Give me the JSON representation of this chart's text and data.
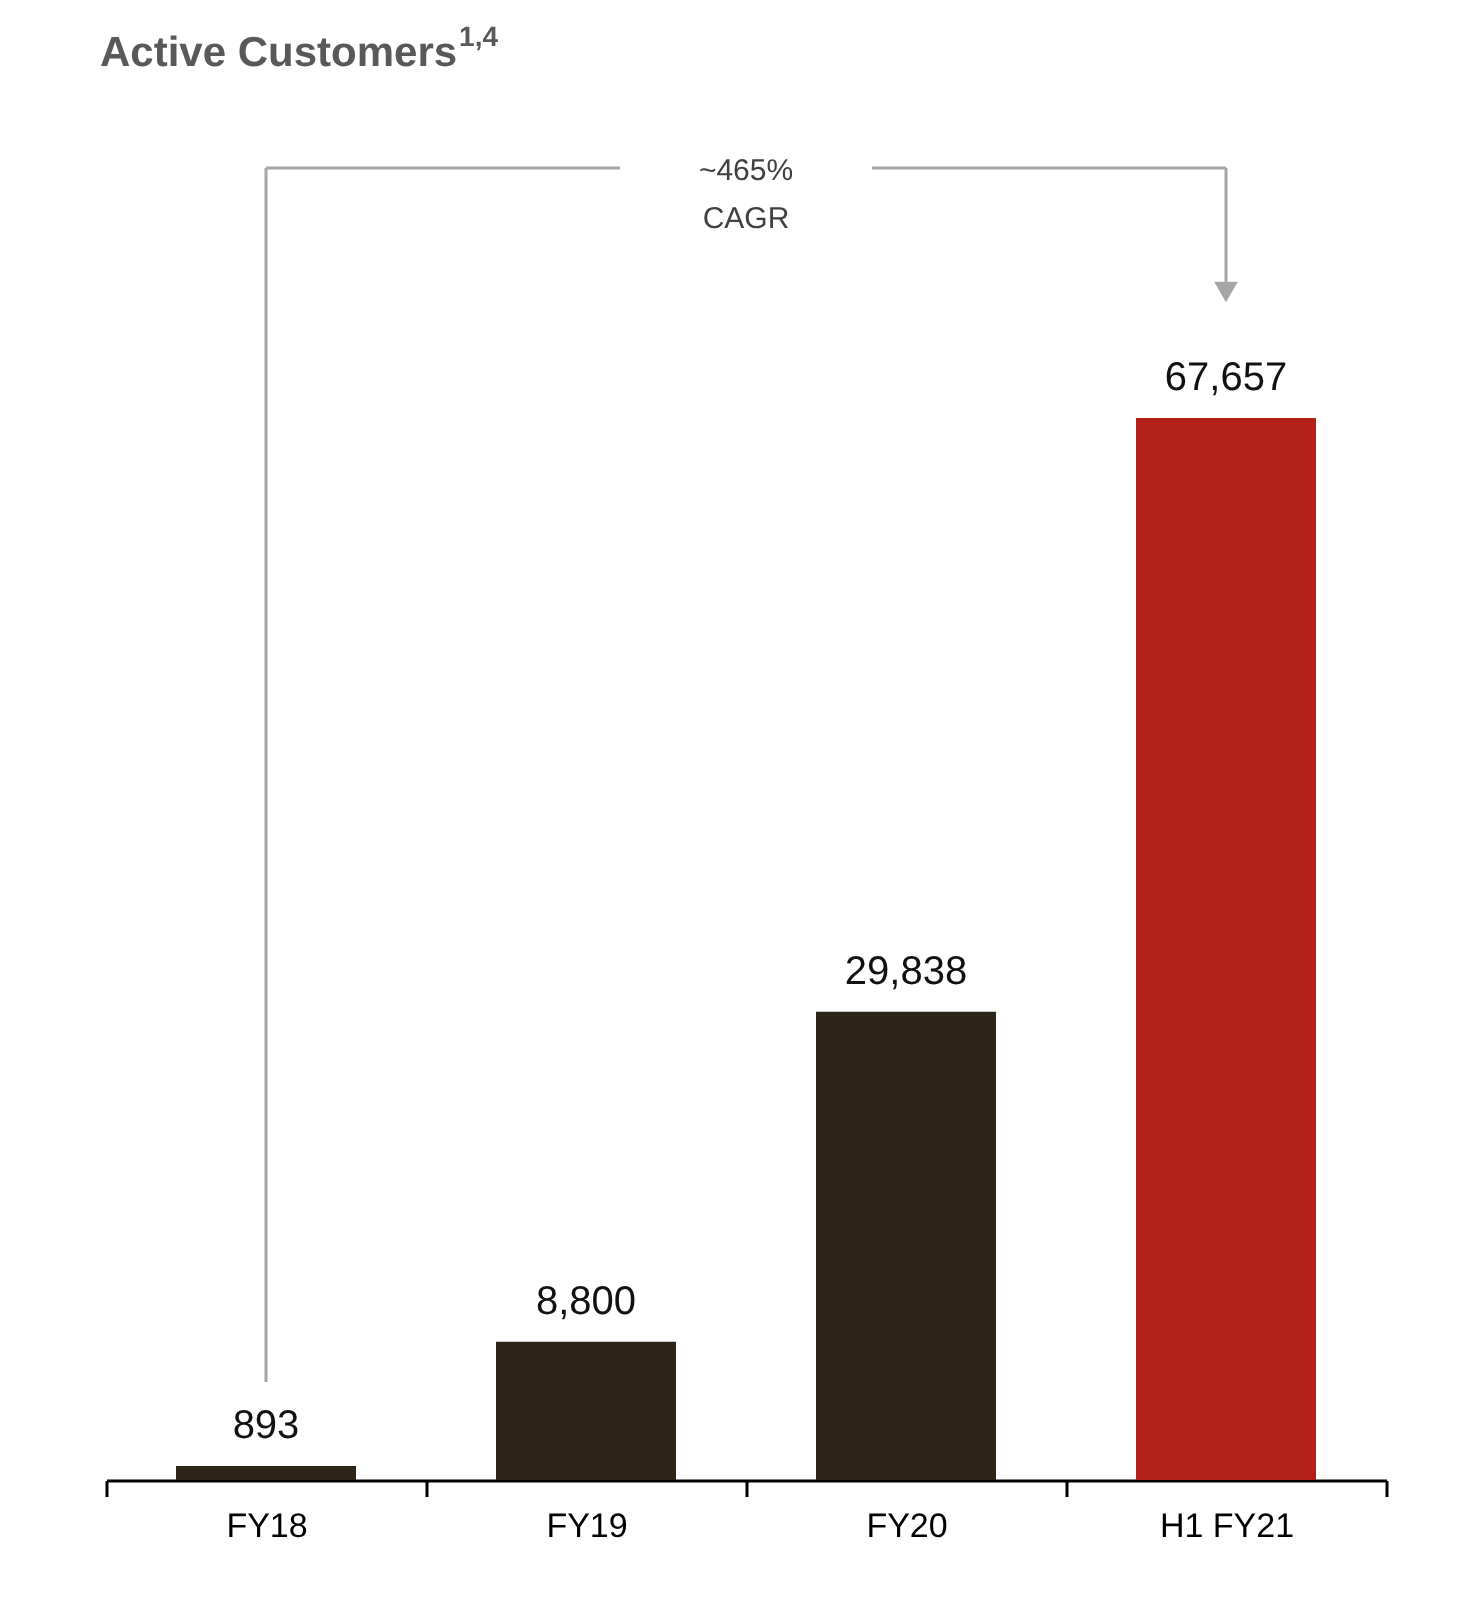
{
  "chart_data": {
    "type": "bar",
    "title": "Active Customers$^{1,4}$",
    "categories": [
      "FY18",
      "FY19",
      "FY20",
      "H1 FY21"
    ],
    "values": [
      893,
      8800,
      29838,
      67657
    ],
    "colors": [
      "#2e2519",
      "#2e2519",
      "#2e2519",
      "#b22019"
    ],
    "value_labels": [
      "893",
      "8,800",
      "29,838",
      "67,657"
    ],
    "annotations": [
      "~465% CAGR"
    ]
  }
}
